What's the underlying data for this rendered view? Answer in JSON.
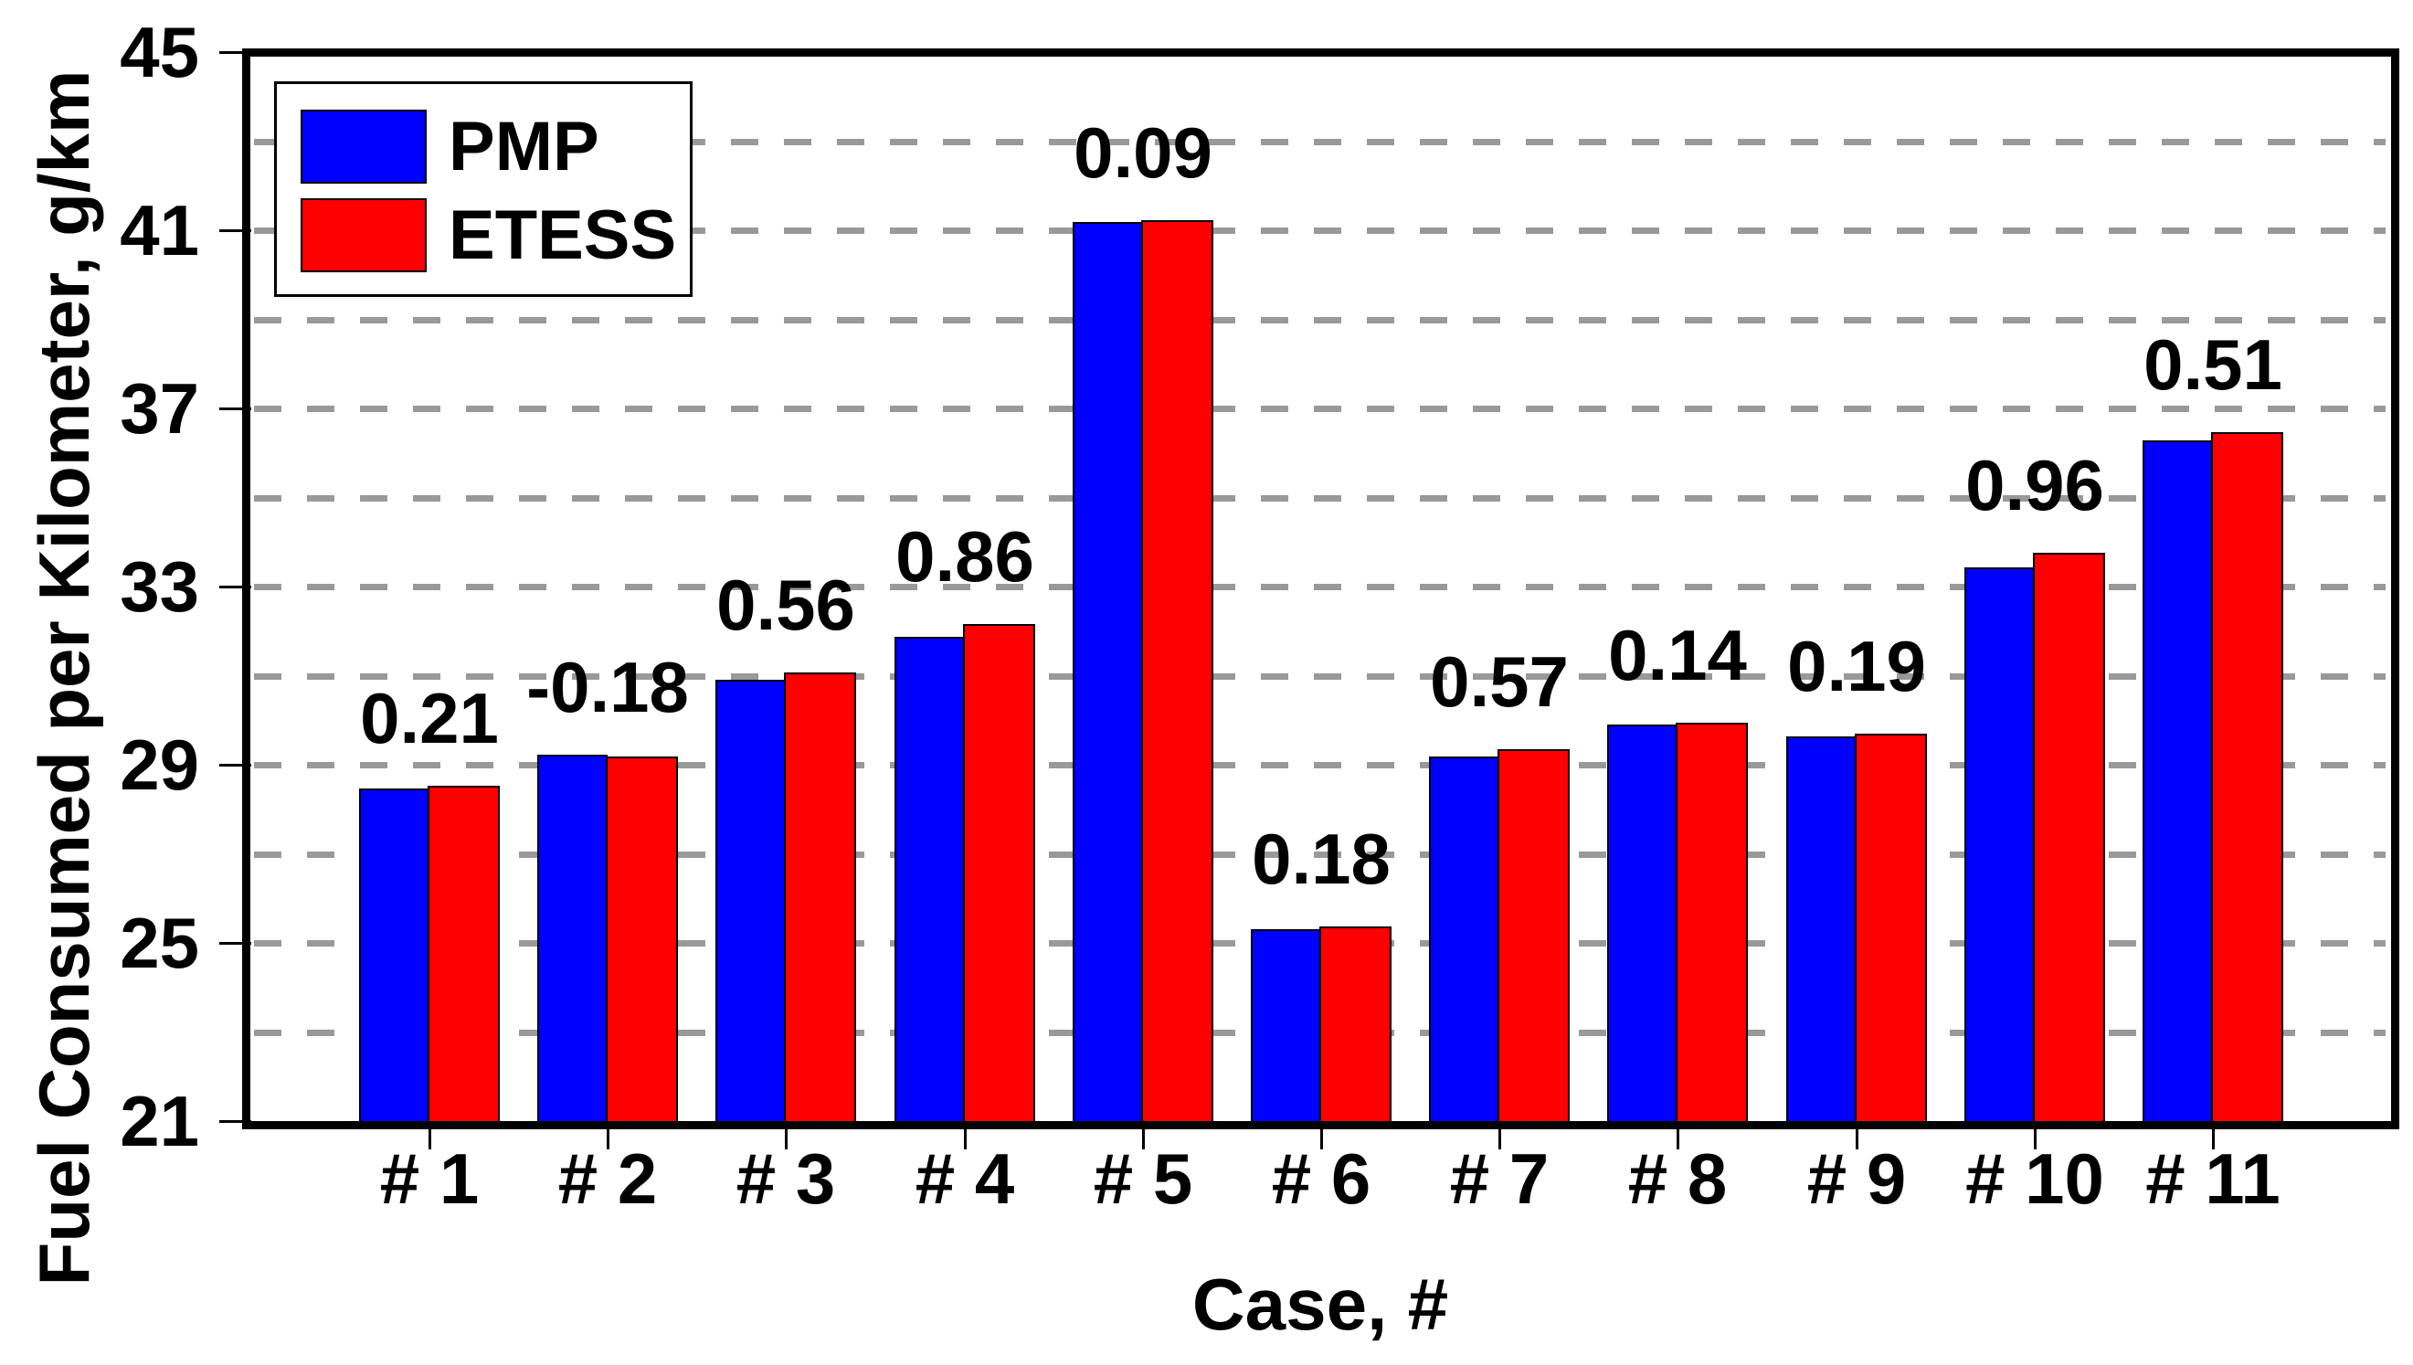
{
  "chart_data": {
    "type": "bar",
    "title": "",
    "xlabel": "Case, #",
    "ylabel": "Fuel Consumed per Kilometer, g/km",
    "categories": [
      "# 1",
      "# 2",
      "# 3",
      "# 4",
      "# 5",
      "# 6",
      "# 7",
      "# 8",
      "# 9",
      "# 10",
      "# 11"
    ],
    "series": [
      {
        "name": "PMP",
        "color": "#0000FF",
        "values": [
          28.47,
          29.23,
          30.9,
          31.88,
          41.18,
          25.31,
          29.18,
          29.9,
          29.64,
          33.43,
          36.28
        ]
      },
      {
        "name": "ETESS",
        "color": "#FF0000",
        "values": [
          28.53,
          29.18,
          31.07,
          32.15,
          41.22,
          25.36,
          29.35,
          29.94,
          29.7,
          33.75,
          36.47
        ]
      }
    ],
    "bar_labels": [
      "0.21",
      "-0.18",
      "0.56",
      "0.86",
      "0.09",
      "0.18",
      "0.57",
      "0.14",
      "0.19",
      "0.96",
      "0.51"
    ],
    "ylim": [
      21,
      45
    ],
    "y_ticks": [
      45,
      41,
      37,
      33,
      29,
      25,
      21
    ],
    "y_grid_step": 2,
    "grid": "horizontal-dashed",
    "legend_position": "top-left",
    "colors": {
      "grid": "#999999",
      "axis": "#000000",
      "background": "#FFFFFF"
    }
  }
}
